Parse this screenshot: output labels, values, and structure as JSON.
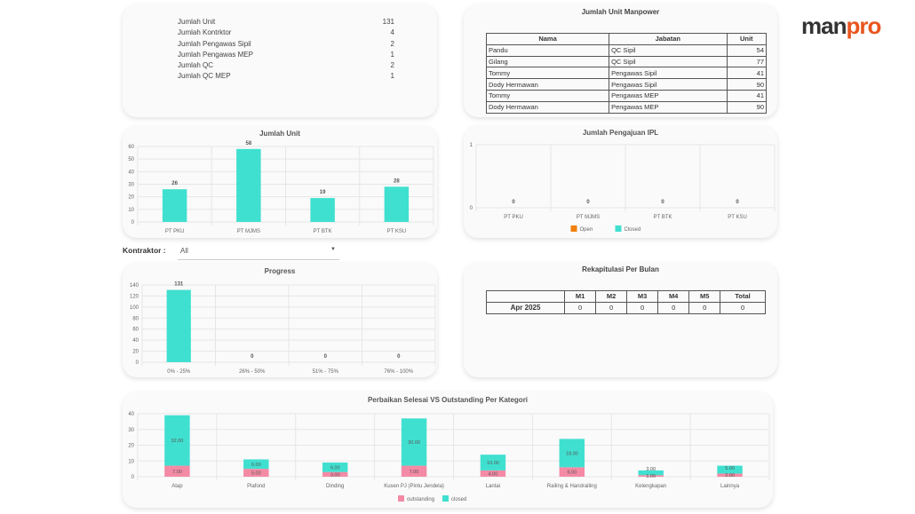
{
  "summary": [
    {
      "label": "Jumlah Unit",
      "value": "131"
    },
    {
      "label": "Jumlah Kontrktor",
      "value": "4"
    },
    {
      "label": "Jumlah Pengawas Sipil",
      "value": "2"
    },
    {
      "label": "Jumlah Pengawas MEP",
      "value": "1"
    },
    {
      "label": "Jumlah QC",
      "value": "2"
    },
    {
      "label": "Jumlah QC MEP",
      "value": "1"
    }
  ],
  "manpower": {
    "title": "Jumlah Unit Manpower",
    "headers": [
      "Nama",
      "Jabatan",
      "Unit"
    ],
    "rows": [
      [
        "Pandu",
        "QC Sipil",
        "54"
      ],
      [
        "Gilang",
        "QC Sipil",
        "77"
      ],
      [
        "Tommy",
        "Pengawas Sipil",
        "41"
      ],
      [
        "Dody Hermawan",
        "Pengawas Sipil",
        "90"
      ],
      [
        "Tommy",
        "Pengawas MEP",
        "41"
      ],
      [
        "Dody Hermawan",
        "Pengawas MEP",
        "90"
      ]
    ]
  },
  "logo": {
    "part1": "man",
    "part2": "pro",
    "color": "#e8561f"
  },
  "filter": {
    "label": "Kontraktor :",
    "value": "All"
  },
  "rekap": {
    "title": "Rekapitulasi Per Bulan",
    "headers": [
      "",
      "M1",
      "M2",
      "M3",
      "M4",
      "M5",
      "Total"
    ],
    "rows": [
      [
        "Apr 2025",
        "0",
        "0",
        "0",
        "0",
        "0",
        "0"
      ]
    ]
  },
  "chart_data": [
    {
      "type": "bar",
      "title": "Jumlah Unit",
      "categories": [
        "PT PKU",
        "PT MJMS",
        "PT BTK",
        "PT KSU"
      ],
      "series": [
        {
          "values": [
            26,
            58,
            19,
            28
          ],
          "color": "#40e0d0"
        }
      ],
      "ylim": [
        0,
        60
      ],
      "yticks": [
        0,
        10,
        20,
        30,
        40,
        50,
        60
      ],
      "grid": true,
      "data_labels": true
    },
    {
      "type": "bar",
      "title": "Jumlah Pengajuan IPL",
      "categories": [
        "PT PKU",
        "PT MJMS",
        "PT BTK",
        "PT KSU"
      ],
      "series": [
        {
          "name": "Open",
          "values": [
            0,
            0,
            0,
            0
          ],
          "color": "#f0800a"
        },
        {
          "name": "Closed",
          "values": [
            0,
            0,
            0,
            0
          ],
          "color": "#40e0d0"
        }
      ],
      "ylim": [
        0,
        1
      ],
      "yticks": [
        0,
        1
      ],
      "grid": true,
      "legend": "bottom",
      "data_labels": true
    },
    {
      "type": "bar",
      "title": "Progress",
      "categories": [
        "0% - 25%",
        "26% - 50%",
        "51% - 75%",
        "76% - 100%"
      ],
      "series": [
        {
          "values": [
            131,
            0,
            0,
            0
          ],
          "color": "#40e0d0"
        }
      ],
      "ylim": [
        0,
        140
      ],
      "yticks": [
        0,
        20,
        40,
        60,
        80,
        100,
        120,
        140
      ],
      "grid": true,
      "data_labels": true
    },
    {
      "type": "bar",
      "stacked": true,
      "title": "Perbaikan Selesai VS Outstanding Per Kategori",
      "categories": [
        "Atap",
        "Plafond",
        "Dinding",
        "Kusen PJ (Pintu Jendela)",
        "Lantai",
        "Railing & Handrailing",
        "Kelengkapan",
        "Lainnya"
      ],
      "series": [
        {
          "name": "outstanding",
          "values": [
            7,
            5,
            3,
            7,
            4,
            6,
            1,
            2
          ],
          "color": "#f48aa5"
        },
        {
          "name": "closed",
          "values": [
            32,
            6,
            6,
            30,
            10,
            18,
            3,
            5
          ],
          "color": "#40e0d0"
        }
      ],
      "ylim": [
        0,
        40
      ],
      "yticks": [
        0,
        10,
        20,
        30,
        40
      ],
      "grid": true,
      "legend": "bottom",
      "data_labels": true
    }
  ]
}
